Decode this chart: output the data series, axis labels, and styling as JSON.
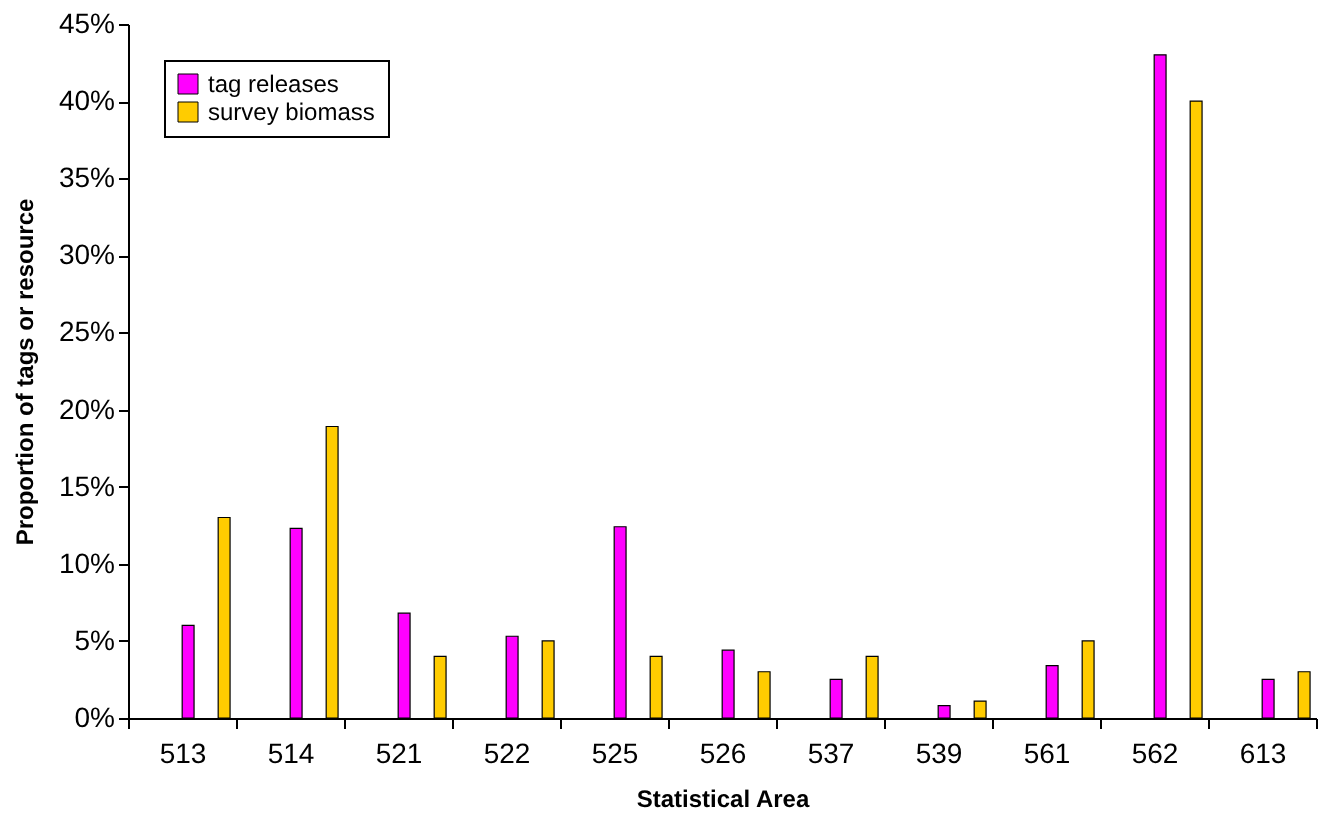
{
  "chart_data": {
    "type": "bar",
    "xlabel": "Statistical Area",
    "ylabel": "Proportion of tags or resource",
    "categories": [
      "513",
      "514",
      "521",
      "522",
      "525",
      "526",
      "537",
      "539",
      "561",
      "562",
      "613"
    ],
    "series": [
      {
        "name": "tag releases",
        "color": "#ff00ff",
        "values": [
          6.0,
          12.3,
          6.8,
          5.3,
          12.4,
          4.4,
          2.5,
          0.8,
          3.4,
          43.0,
          2.5
        ]
      },
      {
        "name": "survey biomass",
        "color": "#ffcc00",
        "values": [
          13.0,
          18.9,
          4.0,
          5.0,
          4.0,
          3.0,
          4.0,
          1.1,
          5.0,
          40.0,
          3.0
        ]
      }
    ],
    "ylim": [
      0,
      45
    ],
    "yticks": [
      {
        "value": 0,
        "label": "0%"
      },
      {
        "value": 5,
        "label": "5%"
      },
      {
        "value": 10,
        "label": "10%"
      },
      {
        "value": 15,
        "label": "15%"
      },
      {
        "value": 20,
        "label": "20%"
      },
      {
        "value": 25,
        "label": "25%"
      },
      {
        "value": 30,
        "label": "30%"
      },
      {
        "value": 35,
        "label": "35%"
      },
      {
        "value": 40,
        "label": "40%"
      },
      {
        "value": 45,
        "label": "45%"
      }
    ],
    "grid": false,
    "legend": "top left"
  }
}
